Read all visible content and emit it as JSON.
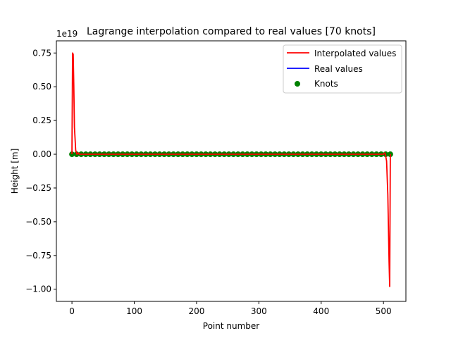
{
  "chart_data": {
    "type": "line",
    "title": "Lagrange interpolation compared to real values [70 knots]",
    "xlabel": "Point number",
    "ylabel": "Height [m]",
    "y_offset_text": "1e19",
    "xlim": [
      -25,
      536
    ],
    "ylim": [
      -1.09,
      0.84
    ],
    "x_ticks": [
      0,
      100,
      200,
      300,
      400,
      500
    ],
    "y_ticks": [
      -1.0,
      -0.75,
      -0.5,
      -0.25,
      0.0,
      0.25,
      0.5,
      0.75
    ],
    "y_tick_labels": [
      "−1.00",
      "−0.75",
      "−0.50",
      "−0.25",
      "0.00",
      "0.25",
      "0.50",
      "0.75"
    ],
    "grid": false,
    "legend_position": "top-right",
    "series": [
      {
        "name": "Interpolated values",
        "kind": "line",
        "color": "#ff0000",
        "x": [
          0,
          1,
          2,
          3,
          4,
          6,
          8,
          10,
          12,
          500,
          502,
          503,
          505,
          507,
          509,
          510,
          511
        ],
        "y": [
          0.0,
          0.75,
          0.74,
          0.5,
          0.2,
          0.03,
          0.0,
          0.01,
          0.0,
          0.0,
          0.01,
          0.0,
          -0.05,
          -0.3,
          -0.8,
          -0.98,
          0.0
        ]
      },
      {
        "name": "Real values",
        "kind": "line",
        "color": "#0000ff",
        "x": [
          0,
          511
        ],
        "y": [
          0.0,
          0.0
        ]
      },
      {
        "name": "Knots",
        "kind": "scatter",
        "color": "#008000",
        "count": 70,
        "x_start": 0,
        "x_end": 511,
        "y_value": 0.0
      }
    ]
  }
}
